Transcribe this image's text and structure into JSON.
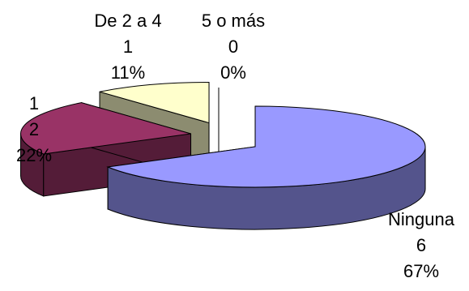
{
  "chart_data": {
    "type": "pie",
    "style": "3d-exploded",
    "legend": "none",
    "slices": [
      {
        "name": "Ninguna",
        "value": 6,
        "percent": "67%",
        "color": "#9999ff"
      },
      {
        "name": "1",
        "value": 2,
        "percent": "22%",
        "color": "#993366"
      },
      {
        "name": "De 2 a 4",
        "value": 1,
        "percent": "11%",
        "color": "#ffffcc"
      },
      {
        "name": "5 o más",
        "value": 0,
        "percent": "0%",
        "color": "#ccffff"
      }
    ]
  }
}
